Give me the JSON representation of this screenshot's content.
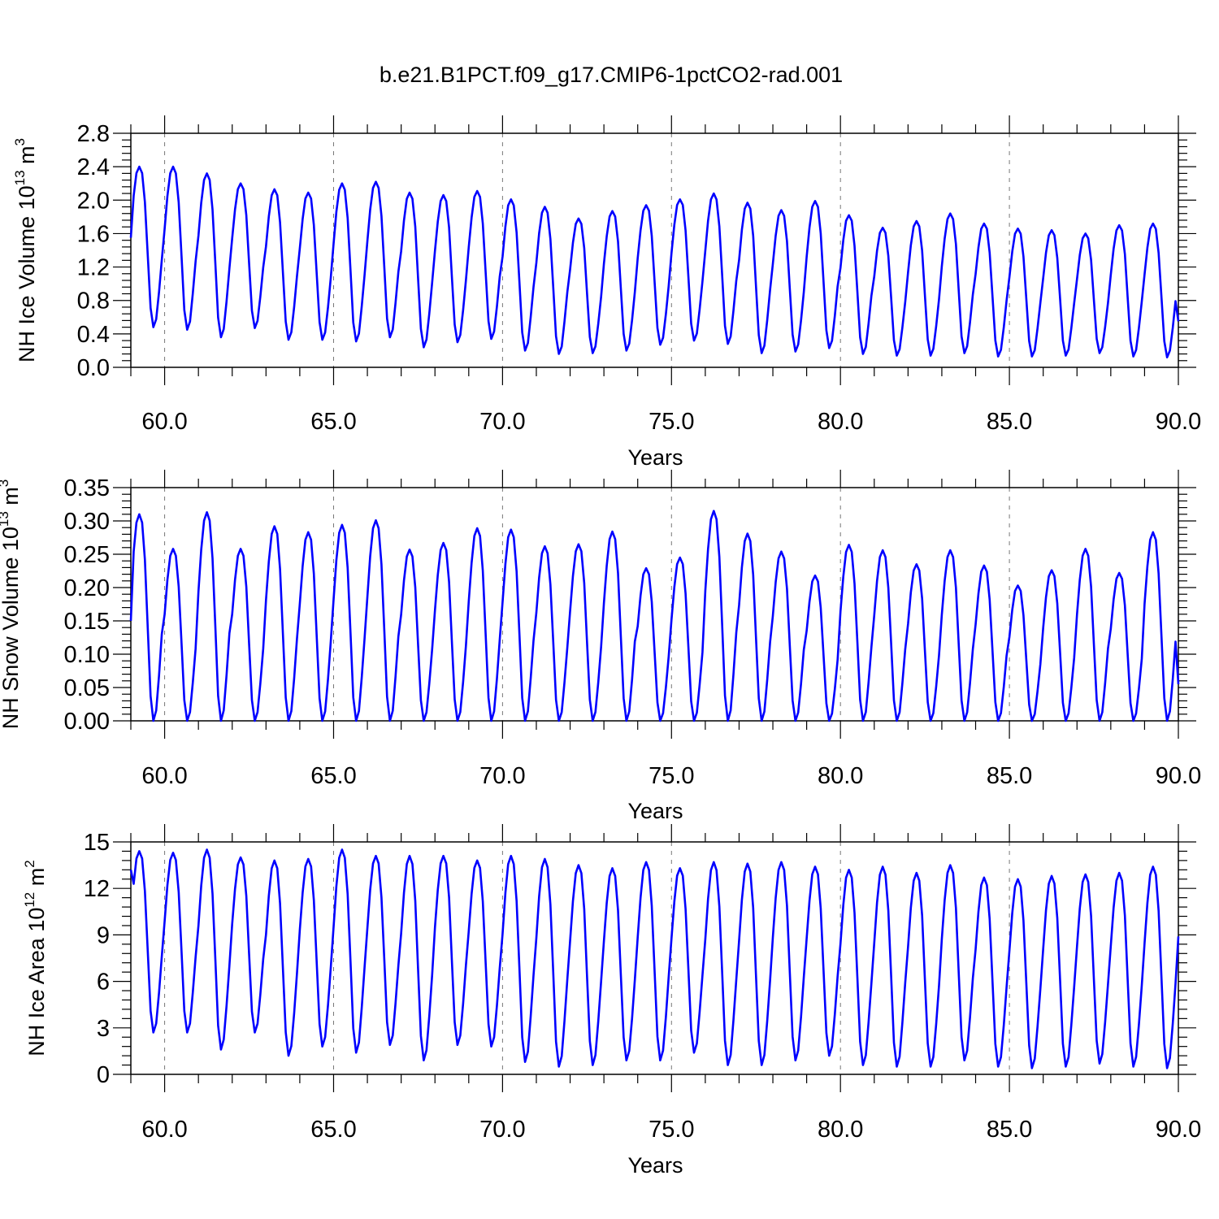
{
  "title": "b.e21.B1PCT.f09_g17.CMIP6-1pctCO2-rad.001",
  "line_color": "#0000ff",
  "chart_data": [
    {
      "type": "line",
      "ylabel": "NH Ice Volume 10",
      "ylabel_exp": "13",
      "ylabel_unit": " m",
      "ylabel_unit_exp": "3",
      "xlabel": "Years",
      "xlim": [
        59.0,
        90.0
      ],
      "ylim": [
        0.0,
        2.8
      ],
      "xticks": [
        60,
        65,
        70,
        75,
        80,
        85,
        90
      ],
      "xtick_labels": [
        "60.0",
        "65.0",
        "70.0",
        "75.0",
        "80.0",
        "85.0",
        "90.0"
      ],
      "yticks": [
        0.0,
        0.4,
        0.8,
        1.2,
        1.6,
        2.0,
        2.4,
        2.8
      ],
      "ytick_labels": [
        "0.0",
        "0.4",
        "0.8",
        "1.2",
        "1.6",
        "2.0",
        "2.4",
        "2.8"
      ],
      "grid": "vertical dashed at major x ticks",
      "start_value": 1.55,
      "annual_max": [
        2.4,
        2.4,
        2.32,
        2.2,
        2.13,
        2.09,
        2.2,
        2.22,
        2.09,
        2.06,
        2.11,
        2.01,
        1.92,
        1.78,
        1.87,
        1.94,
        2.01,
        2.08,
        1.97,
        1.88,
        1.99,
        1.82,
        1.67,
        1.75,
        1.84,
        1.72,
        1.66,
        1.64,
        1.6,
        1.7,
        1.72
      ],
      "annual_min": [
        0.48,
        0.45,
        0.36,
        0.47,
        0.33,
        0.33,
        0.31,
        0.36,
        0.24,
        0.3,
        0.34,
        0.2,
        0.16,
        0.17,
        0.2,
        0.27,
        0.32,
        0.28,
        0.17,
        0.19,
        0.23,
        0.16,
        0.14,
        0.14,
        0.17,
        0.13,
        0.13,
        0.14,
        0.17,
        0.13,
        0.12
      ],
      "end_value": 0.55
    },
    {
      "type": "line",
      "ylabel": "NH Snow Volume 10",
      "ylabel_exp": "13",
      "ylabel_unit": " m",
      "ylabel_unit_exp": "3",
      "xlabel": "Years",
      "xlim": [
        59.0,
        90.0
      ],
      "ylim": [
        0.0,
        0.35
      ],
      "xticks": [
        60,
        65,
        70,
        75,
        80,
        85,
        90
      ],
      "xtick_labels": [
        "60.0",
        "65.0",
        "70.0",
        "75.0",
        "80.0",
        "85.0",
        "90.0"
      ],
      "yticks": [
        0.0,
        0.05,
        0.1,
        0.15,
        0.2,
        0.25,
        0.3,
        0.35
      ],
      "ytick_labels": [
        "0.00",
        "0.05",
        "0.10",
        "0.15",
        "0.20",
        "0.25",
        "0.30",
        "0.35"
      ],
      "grid": "vertical dashed at major x ticks",
      "start_value": 0.15,
      "annual_max": [
        0.31,
        0.258,
        0.313,
        0.258,
        0.292,
        0.283,
        0.294,
        0.301,
        0.257,
        0.267,
        0.289,
        0.287,
        0.262,
        0.265,
        0.284,
        0.229,
        0.245,
        0.315,
        0.281,
        0.254,
        0.218,
        0.264,
        0.256,
        0.235,
        0.256,
        0.233,
        0.203,
        0.226,
        0.258,
        0.222,
        0.283
      ],
      "annual_min": [
        0.0,
        0.0,
        0.0,
        0.0,
        0.0,
        0.0,
        0.0,
        0.0,
        0.0,
        0.0,
        0.0,
        0.0,
        0.0,
        0.0,
        0.0,
        0.0,
        0.0,
        0.0,
        0.0,
        0.0,
        0.0,
        0.0,
        0.0,
        0.0,
        0.0,
        0.0,
        0.0,
        0.0,
        0.0,
        0.0,
        0.0
      ],
      "end_value": 0.055
    },
    {
      "type": "line",
      "ylabel": "NH Ice Area 10",
      "ylabel_exp": "12",
      "ylabel_unit": " m",
      "ylabel_unit_exp": "2",
      "xlabel": "Years",
      "xlim": [
        59.0,
        90.0
      ],
      "ylim": [
        0,
        15
      ],
      "xticks": [
        60,
        65,
        70,
        75,
        80,
        85,
        90
      ],
      "xtick_labels": [
        "60.0",
        "65.0",
        "70.0",
        "75.0",
        "80.0",
        "85.0",
        "90.0"
      ],
      "yticks": [
        0,
        3,
        6,
        9,
        12,
        15
      ],
      "ytick_labels": [
        "0",
        "3",
        "6",
        "9",
        "12",
        "15"
      ],
      "grid": "vertical dashed at major x ticks",
      "start_value": 13.2,
      "annual_max": [
        14.4,
        14.3,
        14.5,
        14.0,
        13.8,
        13.9,
        14.5,
        14.1,
        14.1,
        14.1,
        13.8,
        14.1,
        13.9,
        13.5,
        13.3,
        13.7,
        13.3,
        13.7,
        13.6,
        13.7,
        13.4,
        13.2,
        13.4,
        13.0,
        13.5,
        12.7,
        12.6,
        12.8,
        12.9,
        13.0,
        13.4
      ],
      "annual_min": [
        2.7,
        2.7,
        1.6,
        2.7,
        1.2,
        1.8,
        1.4,
        1.9,
        0.9,
        1.9,
        1.8,
        0.8,
        0.5,
        0.6,
        0.9,
        0.9,
        1.4,
        0.6,
        0.6,
        0.9,
        1.2,
        0.6,
        0.5,
        0.5,
        0.9,
        0.5,
        0.4,
        0.5,
        0.7,
        0.5,
        0.4
      ],
      "end_value": 8.9
    }
  ]
}
